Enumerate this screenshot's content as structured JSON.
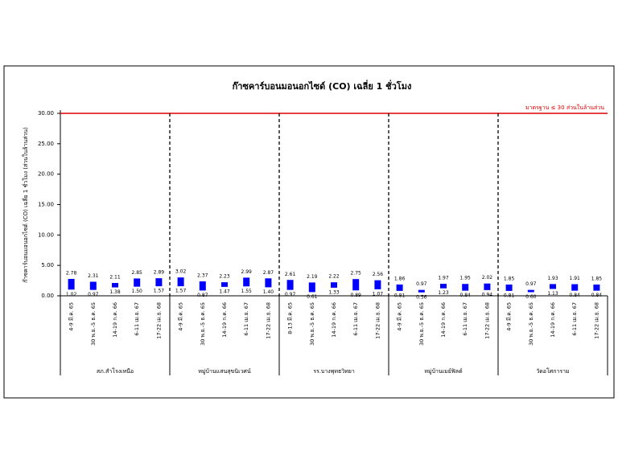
{
  "chart_data": {
    "type": "floating-bar",
    "title": "ก๊าซคาร์บอนมอนอกไซด์ (CO) เฉลี่ย 1 ชั่วโมง",
    "y_label": "ก๊าซคาร์บอนมอนอกไซด์ (CO) เฉลี่ย 1 ชั่วโมง (ส่วนในล้านส่วน)",
    "groups": [
      {
        "label": "สภ.สำโรงเหนือ",
        "categories": [
          "4-9 มี.ค. 65",
          "30 พ.ย.-5 ธ.ค. 65",
          "14-19 ก.ค. 66",
          "6-11 เม.ย. 67",
          "17-22 เม.ย. 68"
        ]
      },
      {
        "label": "หมู่บ้านแสนสุขนิเวศน์",
        "categories": [
          "4-9 มี.ค. 65",
          "30 พ.ย.-5 ธ.ค. 65",
          "14-19 ก.ค. 66",
          "6-11 เม.ย. 67",
          "17-22 เม.ย. 68"
        ]
      },
      {
        "label": "รร.บางพุทธวิทยา",
        "categories": [
          "8-13 มี.ค. 65",
          "30 พ.ย.-5 ธ.ค. 65",
          "14-19 ก.ค. 66",
          "6-11 เม.ย. 67",
          "17-22 เม.ย. 68"
        ]
      },
      {
        "label": "หมู่บ้านเมย์ฟิลด์",
        "categories": [
          "4-9 มี.ค. 65",
          "30 พ.ย.-5 ธ.ค. 65",
          "14-19 ก.ค. 66",
          "6-11 เม.ย. 67",
          "17-22 เม.ย. 68"
        ]
      },
      {
        "label": "วัดอโศการาม",
        "categories": [
          "4-9 มี.ค. 65",
          "30 พ.ย.-5 ธ.ค. 65",
          "14-19 ก.ค. 66",
          "6-11 เม.ย. 67",
          "17-22 เม.ย. 68"
        ]
      }
    ],
    "series": [
      {
        "color": "#0000ff",
        "values": [
          2.78,
          2.31,
          2.11,
          2.85,
          2.89,
          3.02,
          2.37,
          2.23,
          2.99,
          2.87,
          2.61,
          2.19,
          2.22,
          2.75,
          2.56,
          1.86,
          0.97,
          1.97,
          1.95,
          2.02,
          1.85,
          0.97,
          1.93,
          1.91,
          1.85
        ],
        "value_labels": [
          "2.78",
          "2.31",
          "2.11",
          "2.85",
          "2.89",
          "3.02",
          "2.37",
          "2.23",
          "2.99",
          "2.87",
          "2.61",
          "2.19",
          "2.22",
          "2.75",
          "2.56",
          "1.86",
          "0.97",
          "1.97",
          "1.95",
          "2.02",
          "1.85",
          "0.97",
          "1.93",
          "1.91",
          "1.85"
        ]
      },
      {
        "color": "#0000ff",
        "values": [
          1.02,
          0.97,
          1.38,
          1.5,
          1.57,
          1.57,
          0.87,
          1.47,
          1.55,
          1.4,
          0.97,
          0.61,
          1.33,
          0.89,
          1.07,
          0.81,
          0.56,
          1.23,
          0.84,
          0.94,
          0.81,
          0.6,
          1.13,
          0.84,
          0.84
        ],
        "value_labels": [
          "1.02",
          "0.97",
          "1.38",
          "1.50",
          "1.57",
          "1.57",
          "0.87",
          "1.47",
          "1.55",
          "1.40",
          "0.97",
          "0.61",
          "1.33",
          "0.89",
          "1.07",
          "0.81",
          "0.56",
          "1.23",
          "0.84",
          "0.94",
          "0.81",
          "0.60",
          "1.13",
          "0.84",
          "0.84"
        ]
      }
    ],
    "threshold": {
      "value": 30,
      "label": "มาตรฐาน ≤ 30 ส่วนในล้านส่วน",
      "color": "#e00000"
    },
    "ylim": [
      0,
      30
    ],
    "yticks": [
      {
        "value": 0,
        "label": "0.00"
      },
      {
        "value": 5,
        "label": "5.00"
      },
      {
        "value": 10,
        "label": "10.00"
      },
      {
        "value": 15,
        "label": "15.00"
      },
      {
        "value": 20,
        "label": "20.00"
      },
      {
        "value": 25,
        "label": "25.00"
      },
      {
        "value": 30,
        "label": "30.00"
      }
    ]
  }
}
